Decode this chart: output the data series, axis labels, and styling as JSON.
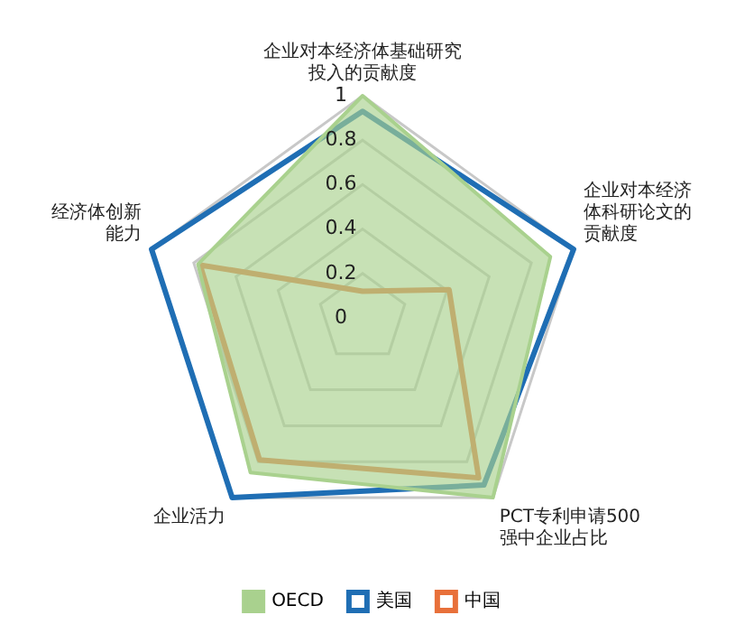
{
  "chart_data": {
    "type": "radar",
    "categories": [
      "企业对本经济体基础研究投入的贡献度",
      "企业对本经济体科研论文的贡献度",
      "PCT专利申请500强中企业占比",
      "企业活力",
      "经济体创新能力"
    ],
    "series": [
      {
        "name": "OECD",
        "color": "#a9d18e",
        "values": [
          1.0,
          0.89,
          1.0,
          0.86,
          0.78
        ]
      },
      {
        "name": "美国",
        "color": "#1f6eb4",
        "values": [
          0.93,
          1.0,
          0.93,
          1.0,
          1.0
        ]
      },
      {
        "name": "中国",
        "color": "#e8703a",
        "values": [
          0.12,
          0.41,
          0.89,
          0.79,
          0.77
        ]
      }
    ],
    "ylim": [
      0,
      1
    ],
    "yticks": [
      0,
      0.2,
      0.4,
      0.6,
      0.8,
      1
    ],
    "grid": true,
    "legend": "bottom",
    "marker": "none"
  }
}
